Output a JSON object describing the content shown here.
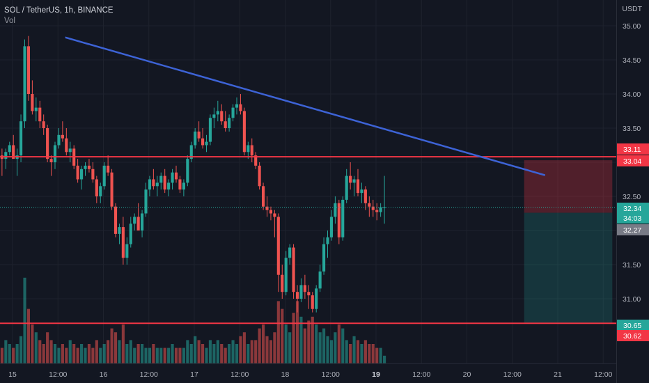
{
  "legend": {
    "symbol_line": "SOL / TetherUS, 1h, BINANCE",
    "volume_label": "Vol"
  },
  "price_scale": {
    "unit": "USDT",
    "ticks": [
      "35.00",
      "34.50",
      "34.00",
      "33.50",
      "33.00",
      "32.50",
      "32.00",
      "31.50",
      "31.00"
    ]
  },
  "time_scale": {
    "ticks": [
      {
        "label": "15",
        "major": false
      },
      {
        "label": "12:00",
        "major": false
      },
      {
        "label": "16",
        "major": false
      },
      {
        "label": "12:00",
        "major": false
      },
      {
        "label": "17",
        "major": false
      },
      {
        "label": "12:00",
        "major": false
      },
      {
        "label": "18",
        "major": false
      },
      {
        "label": "12:00",
        "major": false
      },
      {
        "label": "19",
        "major": true
      },
      {
        "label": "12:00",
        "major": false
      },
      {
        "label": "20",
        "major": false
      },
      {
        "label": "12:00",
        "major": false
      },
      {
        "label": "21",
        "major": false
      },
      {
        "label": "12:00",
        "major": false
      }
    ]
  },
  "price_tags": {
    "resistance_upper": {
      "text": "33.11",
      "color": "#f23645"
    },
    "resistance_lower": {
      "text": "33.04",
      "color": "#f23645"
    },
    "last_price": {
      "text": "32.34",
      "color": "#26a69a"
    },
    "countdown": {
      "text": "34:03",
      "color": "#26a69a"
    },
    "prev_close": {
      "text": "32.27",
      "color": "#787b86"
    },
    "support_upper": {
      "text": "30.65",
      "color": "#26a69a"
    },
    "support_lower": {
      "text": "30.62",
      "color": "#f23645"
    }
  },
  "drawings": {
    "trendline": {
      "color": "#3d63d6",
      "start": {
        "t": 15.58,
        "p": 34.83
      },
      "end": {
        "t": 20.86,
        "p": 32.81
      }
    },
    "horizontal_lines": [
      {
        "price": 33.08,
        "color": "#f23645"
      },
      {
        "price": 30.64,
        "color": "#f23645"
      }
    ],
    "short_position": {
      "t_start": 20.63,
      "t_end": 21.6,
      "stop": 33.03,
      "entry": 32.26,
      "target": 30.65,
      "stop_color": "#f23645",
      "target_color": "#26a69a"
    }
  },
  "colors": {
    "background": "#131722",
    "up": "#26a69a",
    "down": "#ef5350",
    "grid": "#1e222d"
  },
  "chart_data": {
    "type": "candlestick",
    "series_ohlc_points": [
      [
        33.3,
        33.6,
        33.1,
        33.5
      ],
      [
        33.5,
        33.55,
        33.0,
        33.1
      ],
      [
        33.1,
        33.2,
        32.8,
        33.05
      ],
      [
        33.05,
        33.2,
        32.9,
        33.15
      ],
      [
        33.15,
        33.3,
        33.1,
        33.25
      ],
      [
        33.25,
        33.4,
        33.1,
        33.05
      ],
      [
        33.05,
        33.2,
        32.8,
        33.1
      ],
      [
        33.1,
        33.7,
        33.0,
        33.6
      ],
      [
        33.6,
        34.8,
        33.5,
        34.7
      ],
      [
        34.7,
        34.85,
        33.9,
        34.0
      ],
      [
        34.0,
        34.2,
        33.7,
        33.75
      ],
      [
        33.75,
        33.95,
        33.6,
        33.8
      ],
      [
        33.8,
        33.9,
        33.5,
        33.6
      ],
      [
        33.6,
        33.7,
        33.4,
        33.5
      ],
      [
        33.5,
        33.55,
        33.0,
        33.05
      ],
      [
        33.05,
        33.1,
        32.8,
        33.0
      ],
      [
        33.0,
        33.3,
        32.9,
        33.25
      ],
      [
        33.25,
        33.5,
        33.2,
        33.4
      ],
      [
        33.4,
        33.6,
        33.3,
        33.35
      ],
      [
        33.35,
        33.5,
        33.1,
        33.15
      ],
      [
        33.15,
        33.3,
        33.0,
        33.2
      ],
      [
        33.2,
        33.25,
        32.9,
        32.95
      ],
      [
        32.95,
        33.05,
        32.7,
        32.75
      ],
      [
        32.75,
        32.95,
        32.6,
        32.9
      ],
      [
        32.9,
        33.0,
        32.8,
        32.95
      ],
      [
        32.95,
        33.05,
        32.85,
        32.9
      ],
      [
        32.9,
        33.0,
        32.7,
        32.75
      ],
      [
        32.75,
        32.8,
        32.4,
        32.5
      ],
      [
        32.5,
        32.7,
        32.4,
        32.65
      ],
      [
        32.65,
        33.0,
        32.6,
        32.95
      ],
      [
        32.95,
        33.1,
        32.8,
        32.85
      ],
      [
        32.85,
        32.9,
        32.3,
        32.35
      ],
      [
        32.35,
        32.4,
        31.9,
        31.95
      ],
      [
        31.95,
        32.1,
        31.8,
        32.05
      ],
      [
        32.05,
        32.2,
        31.5,
        31.6
      ],
      [
        31.6,
        31.9,
        31.5,
        31.8
      ],
      [
        31.8,
        32.2,
        31.75,
        32.1
      ],
      [
        32.1,
        32.25,
        32.0,
        32.2
      ],
      [
        32.2,
        32.4,
        32.1,
        32.0
      ],
      [
        32.0,
        32.3,
        31.9,
        32.25
      ],
      [
        32.25,
        32.7,
        32.2,
        32.6
      ],
      [
        32.6,
        32.8,
        32.5,
        32.75
      ],
      [
        32.75,
        32.9,
        32.6,
        32.65
      ],
      [
        32.65,
        32.8,
        32.5,
        32.7
      ],
      [
        32.7,
        32.85,
        32.6,
        32.8
      ],
      [
        32.8,
        32.9,
        32.55,
        32.6
      ],
      [
        32.6,
        32.75,
        32.5,
        32.7
      ],
      [
        32.7,
        32.9,
        32.6,
        32.85
      ],
      [
        32.85,
        32.95,
        32.7,
        32.75
      ],
      [
        32.75,
        32.8,
        32.55,
        32.6
      ],
      [
        32.6,
        32.75,
        32.5,
        32.7
      ],
      [
        32.7,
        33.1,
        32.65,
        33.05
      ],
      [
        33.05,
        33.3,
        33.0,
        33.25
      ],
      [
        33.25,
        33.5,
        33.2,
        33.45
      ],
      [
        33.45,
        33.6,
        33.3,
        33.35
      ],
      [
        33.35,
        33.5,
        33.2,
        33.25
      ],
      [
        33.25,
        33.4,
        33.15,
        33.3
      ],
      [
        33.3,
        33.7,
        33.25,
        33.65
      ],
      [
        33.65,
        33.8,
        33.5,
        33.7
      ],
      [
        33.7,
        33.9,
        33.6,
        33.75
      ],
      [
        33.75,
        33.85,
        33.55,
        33.6
      ],
      [
        33.6,
        33.75,
        33.45,
        33.5
      ],
      [
        33.5,
        33.7,
        33.45,
        33.65
      ],
      [
        33.65,
        33.85,
        33.6,
        33.8
      ],
      [
        33.8,
        33.95,
        33.7,
        33.85
      ],
      [
        33.85,
        34.0,
        33.7,
        33.75
      ],
      [
        33.75,
        33.8,
        33.1,
        33.15
      ],
      [
        33.15,
        33.3,
        33.05,
        33.25
      ],
      [
        33.25,
        33.35,
        33.0,
        33.1
      ],
      [
        33.1,
        33.15,
        32.9,
        32.95
      ],
      [
        32.95,
        33.0,
        32.6,
        32.65
      ],
      [
        32.65,
        32.7,
        32.3,
        32.35
      ],
      [
        32.35,
        32.5,
        32.2,
        32.3
      ],
      [
        32.3,
        32.35,
        32.15,
        32.25
      ],
      [
        32.25,
        32.3,
        31.9,
        32.2
      ],
      [
        32.2,
        32.25,
        31.1,
        31.35
      ],
      [
        31.35,
        31.5,
        31.0,
        31.1
      ],
      [
        31.1,
        31.7,
        31.05,
        31.6
      ],
      [
        31.6,
        31.8,
        31.5,
        31.75
      ],
      [
        31.75,
        31.8,
        31.0,
        31.1
      ],
      [
        31.1,
        31.2,
        30.8,
        31.0
      ],
      [
        31.0,
        31.3,
        30.95,
        31.2
      ],
      [
        31.2,
        31.35,
        31.0,
        31.1
      ],
      [
        31.1,
        31.2,
        30.85,
        31.05
      ],
      [
        31.05,
        31.1,
        30.8,
        30.85
      ],
      [
        30.85,
        31.2,
        30.8,
        31.15
      ],
      [
        31.15,
        31.5,
        31.1,
        31.4
      ],
      [
        31.4,
        31.9,
        31.35,
        31.8
      ],
      [
        31.8,
        32.0,
        31.6,
        31.9
      ],
      [
        31.9,
        32.3,
        31.85,
        32.2
      ],
      [
        32.2,
        32.5,
        32.1,
        32.4
      ],
      [
        32.4,
        32.45,
        31.8,
        31.9
      ],
      [
        31.9,
        32.5,
        31.85,
        32.45
      ],
      [
        32.45,
        32.9,
        32.4,
        32.8
      ],
      [
        32.8,
        33.0,
        32.6,
        32.7
      ],
      [
        32.7,
        32.8,
        32.5,
        32.75
      ],
      [
        32.75,
        32.9,
        32.5,
        32.55
      ],
      [
        32.55,
        32.7,
        32.4,
        32.6
      ],
      [
        32.6,
        32.65,
        32.3,
        32.4
      ],
      [
        32.4,
        32.5,
        32.2,
        32.35
      ],
      [
        32.35,
        32.45,
        32.2,
        32.3
      ],
      [
        32.3,
        32.4,
        32.15,
        32.27
      ],
      [
        32.27,
        32.4,
        32.2,
        32.34
      ],
      [
        32.34,
        32.8,
        32.1,
        32.34
      ]
    ],
    "volume_values": [
      8,
      5,
      4,
      6,
      5,
      4,
      5,
      7,
      22,
      14,
      10,
      8,
      6,
      5,
      8,
      6,
      5,
      4,
      5,
      4,
      6,
      5,
      4,
      5,
      4,
      5,
      4,
      6,
      4,
      5,
      6,
      9,
      8,
      6,
      10,
      5,
      6,
      4,
      5,
      5,
      4,
      4,
      5,
      4,
      4,
      4,
      4,
      5,
      4,
      4,
      4,
      6,
      5,
      7,
      6,
      5,
      4,
      6,
      5,
      6,
      5,
      4,
      5,
      6,
      5,
      7,
      8,
      5,
      6,
      6,
      9,
      10,
      7,
      6,
      8,
      16,
      14,
      10,
      8,
      13,
      16,
      12,
      9,
      11,
      12,
      10,
      8,
      9,
      7,
      6,
      8,
      10,
      9,
      6,
      5,
      7,
      6,
      5,
      6,
      5,
      5,
      4,
      4,
      2
    ]
  }
}
